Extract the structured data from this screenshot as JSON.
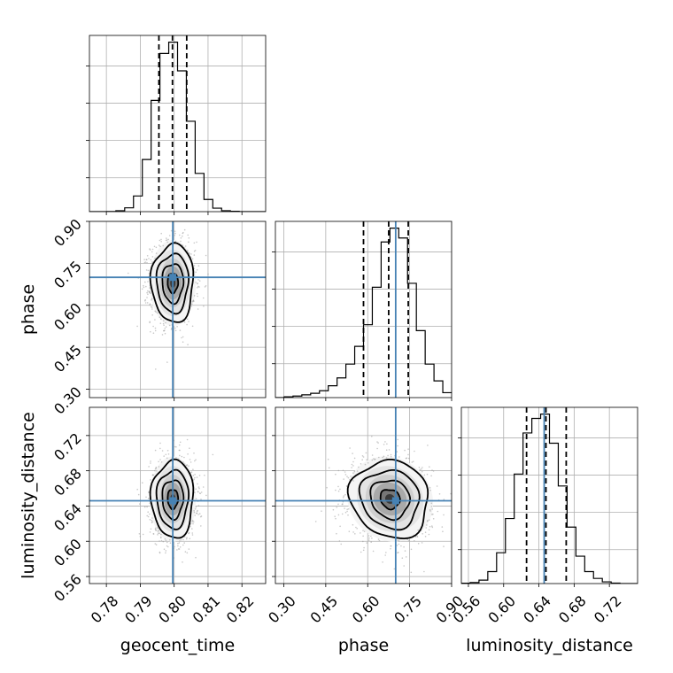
{
  "chart_data": {
    "type": "corner",
    "parameters": [
      {
        "name": "geocent_time",
        "label": "geocent_time",
        "range": [
          0.775,
          0.827
        ],
        "ticks": [
          0.78,
          0.79,
          0.8,
          0.81,
          0.82
        ],
        "tick_labels": [
          "0.78",
          "0.79",
          "0.80",
          "0.81",
          "0.82"
        ],
        "truth": 0.7996,
        "quantiles": [
          0.7955,
          0.7995,
          0.8037
        ],
        "hist_bins": [
          0.775,
          0.7776,
          0.7802,
          0.7828,
          0.7854,
          0.788,
          0.7906,
          0.7932,
          0.7958,
          0.7984,
          0.801,
          0.8036,
          0.8062,
          0.8088,
          0.8114,
          0.814,
          0.8166,
          0.8192,
          0.8218,
          0.8244,
          0.827
        ],
        "hist_counts": [
          0,
          0,
          1,
          5,
          22,
          90,
          300,
          640,
          910,
          975,
          810,
          520,
          220,
          70,
          20,
          5,
          2,
          0,
          0,
          0
        ],
        "mean": 0.7996,
        "sd": 0.0031
      },
      {
        "name": "phase",
        "label": "phase",
        "range": [
          0.27,
          0.9
        ],
        "ticks": [
          0.3,
          0.45,
          0.6,
          0.75,
          0.9
        ],
        "tick_labels": [
          "0.30",
          "0.45",
          "0.60",
          "0.75",
          "0.90"
        ],
        "truth": 0.7,
        "quantiles": [
          0.585,
          0.675,
          0.745
        ],
        "hist_bins": [
          0.27,
          0.3015,
          0.333,
          0.3645,
          0.396,
          0.4275,
          0.459,
          0.4905,
          0.522,
          0.5535,
          0.585,
          0.6165,
          0.648,
          0.6795,
          0.711,
          0.7425,
          0.774,
          0.8055,
          0.837,
          0.8685,
          0.9
        ],
        "hist_counts": [
          0,
          4,
          8,
          14,
          22,
          35,
          60,
          100,
          170,
          260,
          370,
          560,
          790,
          860,
          810,
          580,
          340,
          170,
          85,
          25
        ],
        "mean": 0.68,
        "sd": 0.07
      },
      {
        "name": "luminosity_distance",
        "label": "luminosity_distance",
        "range": [
          0.552,
          0.752
        ],
        "ticks": [
          0.56,
          0.6,
          0.64,
          0.68,
          0.72
        ],
        "tick_labels": [
          "0.56",
          "0.60",
          "0.64",
          "0.68",
          "0.72"
        ],
        "truth": 0.646,
        "quantiles": [
          0.626,
          0.648,
          0.671
        ],
        "hist_bins": [
          0.552,
          0.562,
          0.572,
          0.582,
          0.592,
          0.602,
          0.612,
          0.622,
          0.632,
          0.642,
          0.652,
          0.662,
          0.672,
          0.682,
          0.692,
          0.702,
          0.712,
          0.722,
          0.732,
          0.742,
          0.752
        ],
        "hist_counts": [
          2,
          6,
          20,
          70,
          180,
          380,
          640,
          880,
          965,
          990,
          820,
          570,
          330,
          160,
          70,
          30,
          10,
          3,
          0,
          0
        ],
        "mean": 0.648,
        "sd": 0.022
      }
    ],
    "pair_correlations": {
      "geocent_time|phase": 0.0,
      "geocent_time|luminosity_distance": 0.0,
      "phase|luminosity_distance": -0.1
    },
    "contour_levels_sigma": [
      0.5,
      1.0,
      1.5,
      2.0
    ],
    "colors": {
      "truth": "#4682b4",
      "hist": "#000000",
      "contour": "#000000",
      "points": "#9a9a9a",
      "grid": "#b0b0b0"
    },
    "grid": true
  }
}
